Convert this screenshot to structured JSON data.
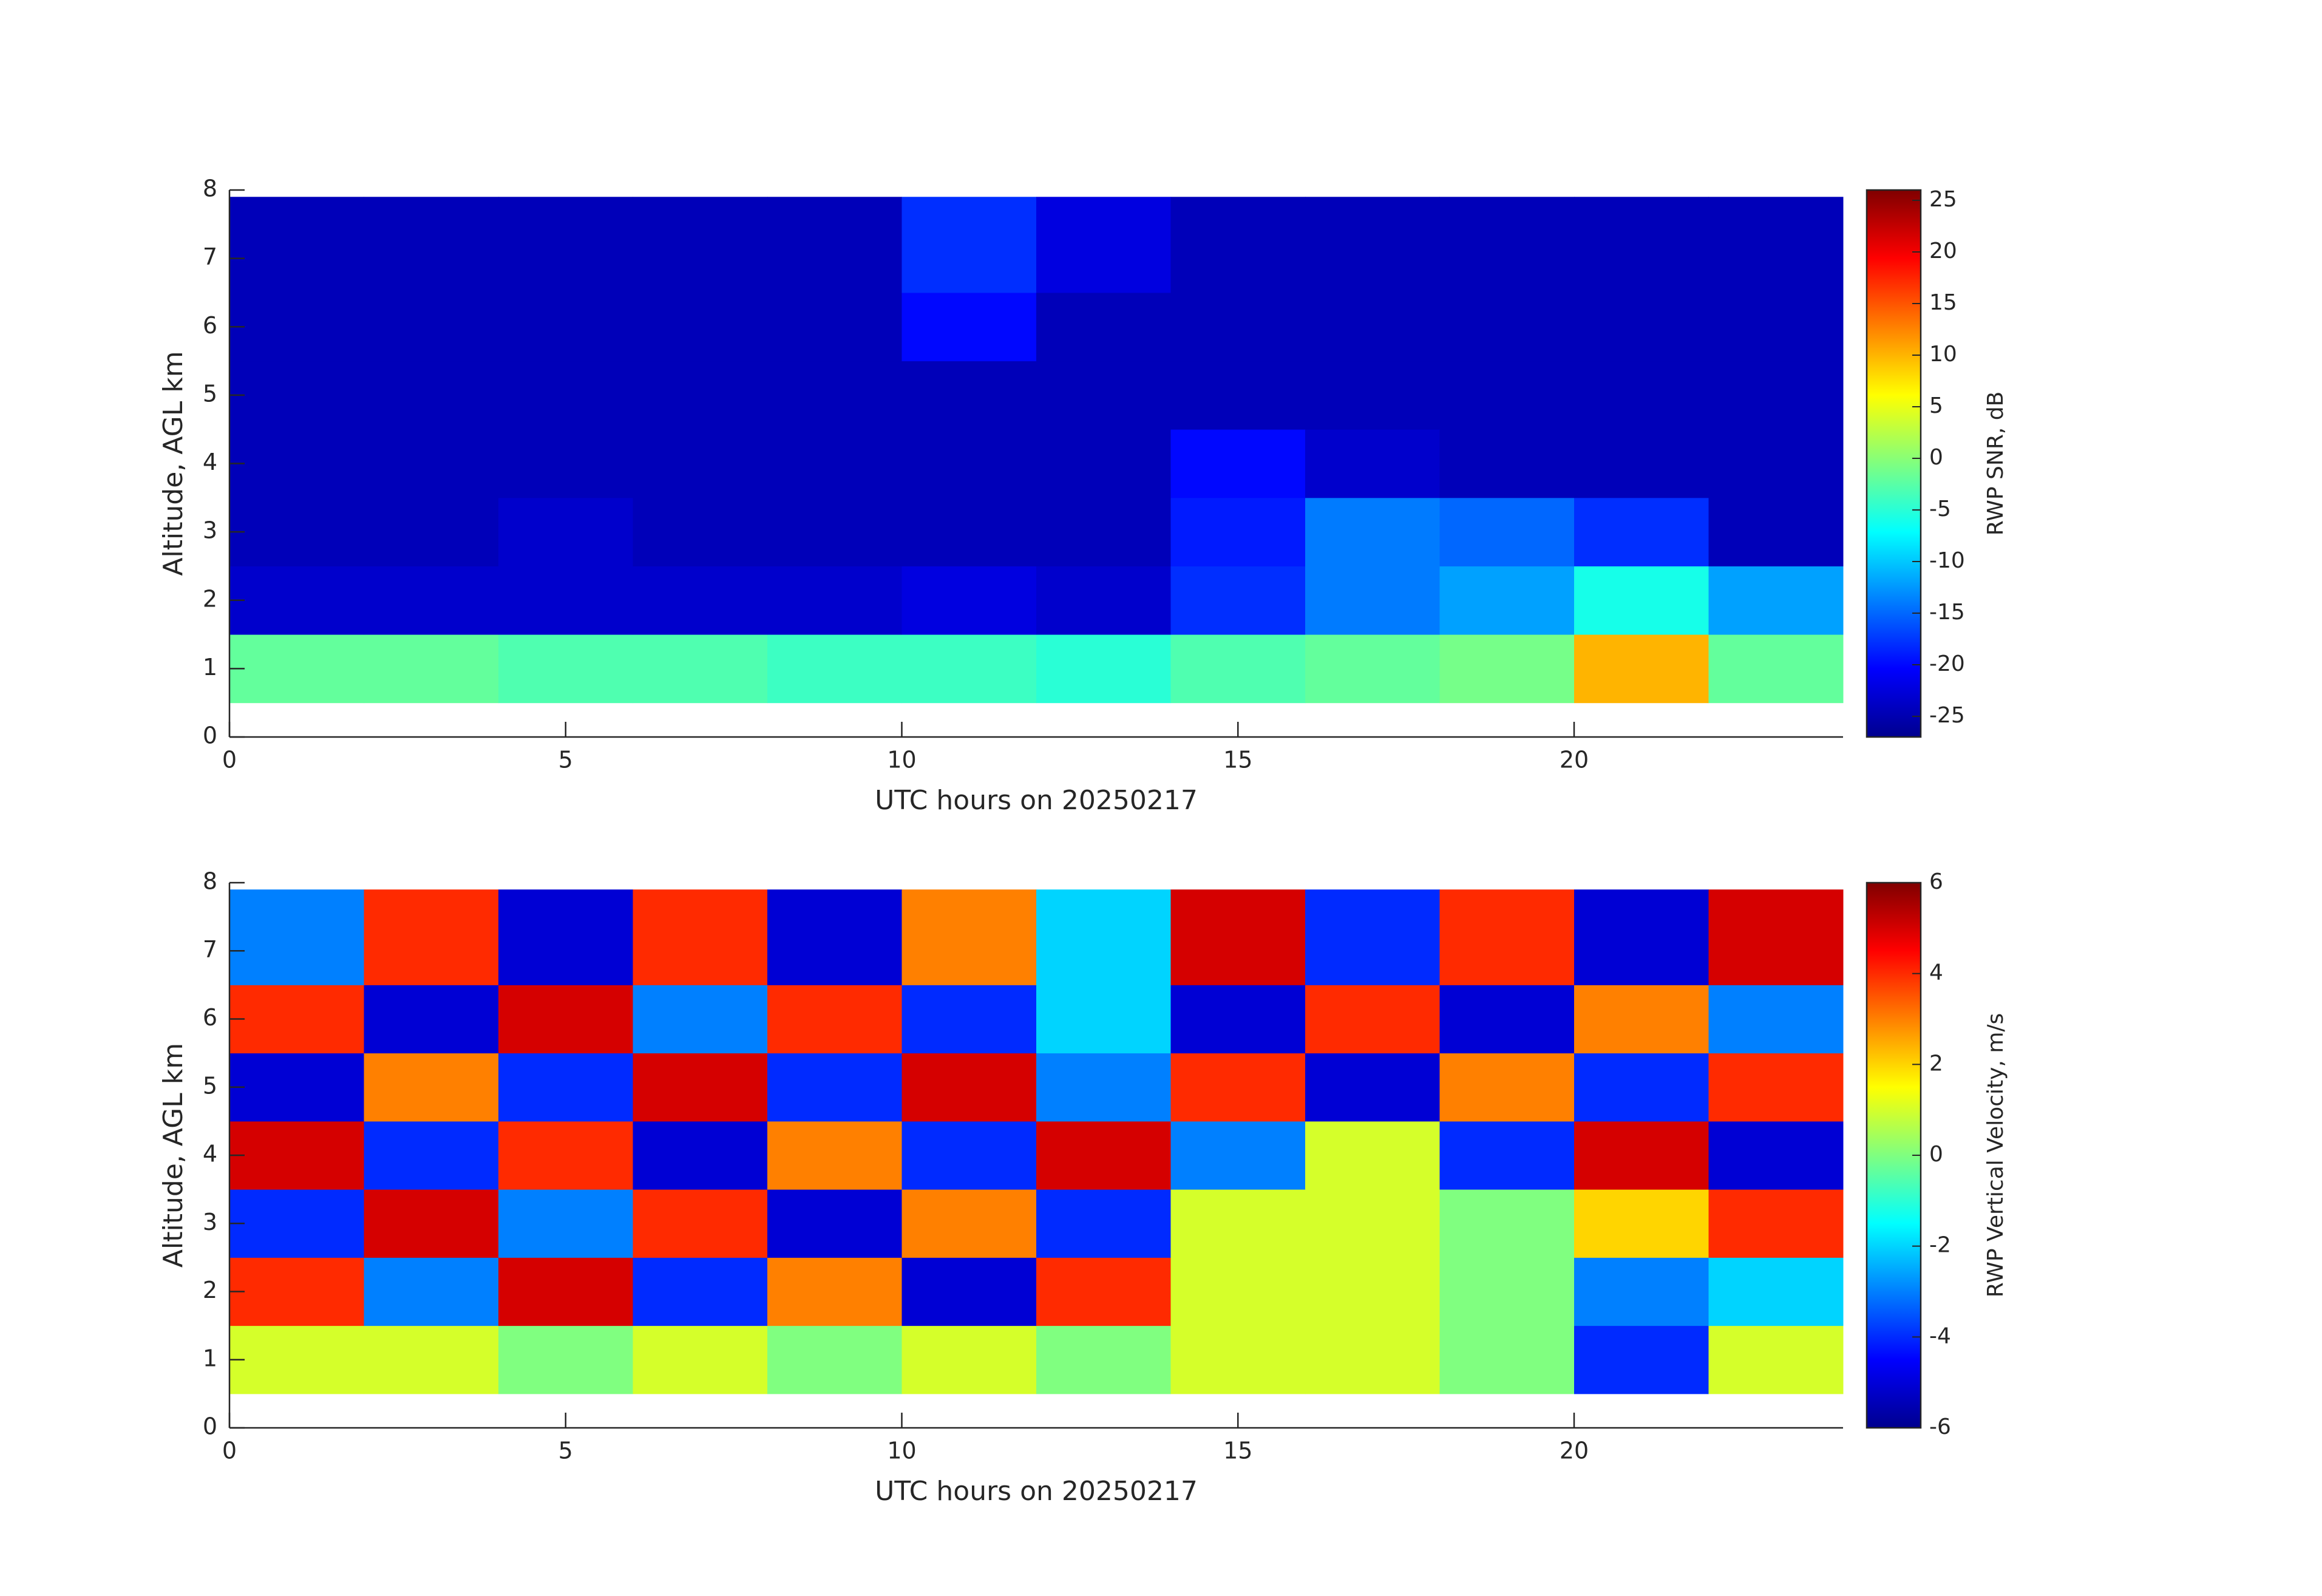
{
  "chart_data": [
    {
      "type": "heatmap",
      "xlabel": "UTC hours on 20250217",
      "ylabel": "Altitude, AGL km",
      "colorbar_label": "RWP SNR, dB",
      "colormap": "jet",
      "x_edges": [
        0,
        2,
        4,
        6,
        8,
        10,
        12,
        14,
        16,
        18,
        20,
        22,
        24
      ],
      "y_edges": [
        0.5,
        1.5,
        2.5,
        3.5,
        4.5,
        5.5,
        6.5,
        7.9
      ],
      "values": [
        [
          -2,
          -2,
          -3,
          -3,
          -4,
          -4,
          -5,
          -3,
          -2,
          -1,
          10,
          -2
        ],
        [
          -23,
          -23,
          -23,
          -23,
          -23,
          -22,
          -23,
          -18,
          -14,
          -12,
          -6,
          -12
        ],
        [
          -24,
          -24,
          -23,
          -24,
          -24,
          -24,
          -24,
          -19,
          -14,
          -15,
          -18,
          -24
        ],
        [
          -24,
          -24,
          -24,
          -24,
          -24,
          -24,
          -24,
          -20,
          -23,
          -24,
          -24,
          -24
        ],
        [
          -24,
          -24,
          -24,
          -24,
          -24,
          -24,
          -24,
          -24,
          -24,
          -24,
          -24,
          -24
        ],
        [
          -24,
          -24,
          -24,
          -24,
          -24,
          -20,
          -24,
          -24,
          -24,
          -24,
          -24,
          -24
        ],
        [
          -24,
          -24,
          -24,
          -24,
          -24,
          -18,
          -22,
          -24,
          -24,
          -24,
          -24,
          -24
        ]
      ],
      "xlim": [
        0,
        24
      ],
      "ylim": [
        0,
        8
      ],
      "xticks": [
        0,
        5,
        10,
        15,
        20
      ],
      "yticks": [
        0,
        1,
        2,
        3,
        4,
        5,
        6,
        7,
        8
      ],
      "clim": [
        -27,
        26
      ],
      "cticks": [
        -25,
        -20,
        -15,
        -10,
        -5,
        0,
        5,
        10,
        15,
        20,
        25
      ]
    },
    {
      "type": "heatmap",
      "xlabel": "UTC hours on 20250217",
      "ylabel": "Altitude, AGL km",
      "colorbar_label": "RWP Vertical Velocity, m/s",
      "colormap": "jet",
      "x_edges": [
        0,
        2,
        4,
        6,
        8,
        10,
        12,
        14,
        16,
        18,
        20,
        22,
        24
      ],
      "y_edges": [
        0.5,
        1.5,
        2.5,
        3.5,
        4.5,
        5.5,
        6.5,
        7.9
      ],
      "values": [
        [
          1,
          1,
          0,
          1,
          0,
          1,
          0,
          1,
          1,
          0,
          -4,
          1
        ],
        [
          4,
          -3,
          5,
          -4,
          3,
          -5,
          4,
          1,
          1,
          0,
          -3,
          -2
        ],
        [
          -4,
          5,
          -3,
          4,
          -5,
          3,
          -4,
          1,
          1,
          0,
          2,
          4
        ],
        [
          5,
          -4,
          4,
          -5,
          3,
          -4,
          5,
          -3,
          1,
          -4,
          5,
          -5
        ],
        [
          -5,
          3,
          -4,
          5,
          -4,
          5,
          -3,
          4,
          -5,
          3,
          -4,
          4
        ],
        [
          4,
          -5,
          5,
          -3,
          4,
          -4,
          -2,
          -5,
          4,
          -5,
          3,
          -3
        ],
        [
          -3,
          4,
          -5,
          4,
          -5,
          3,
          -2,
          5,
          -4,
          4,
          -5,
          5
        ]
      ],
      "xlim": [
        0,
        24
      ],
      "ylim": [
        0,
        8
      ],
      "xticks": [
        0,
        5,
        10,
        15,
        20
      ],
      "yticks": [
        0,
        1,
        2,
        3,
        4,
        5,
        6,
        7,
        8
      ],
      "clim": [
        -6,
        6
      ],
      "cticks": [
        -6,
        -4,
        -2,
        0,
        2,
        4,
        6
      ]
    }
  ]
}
